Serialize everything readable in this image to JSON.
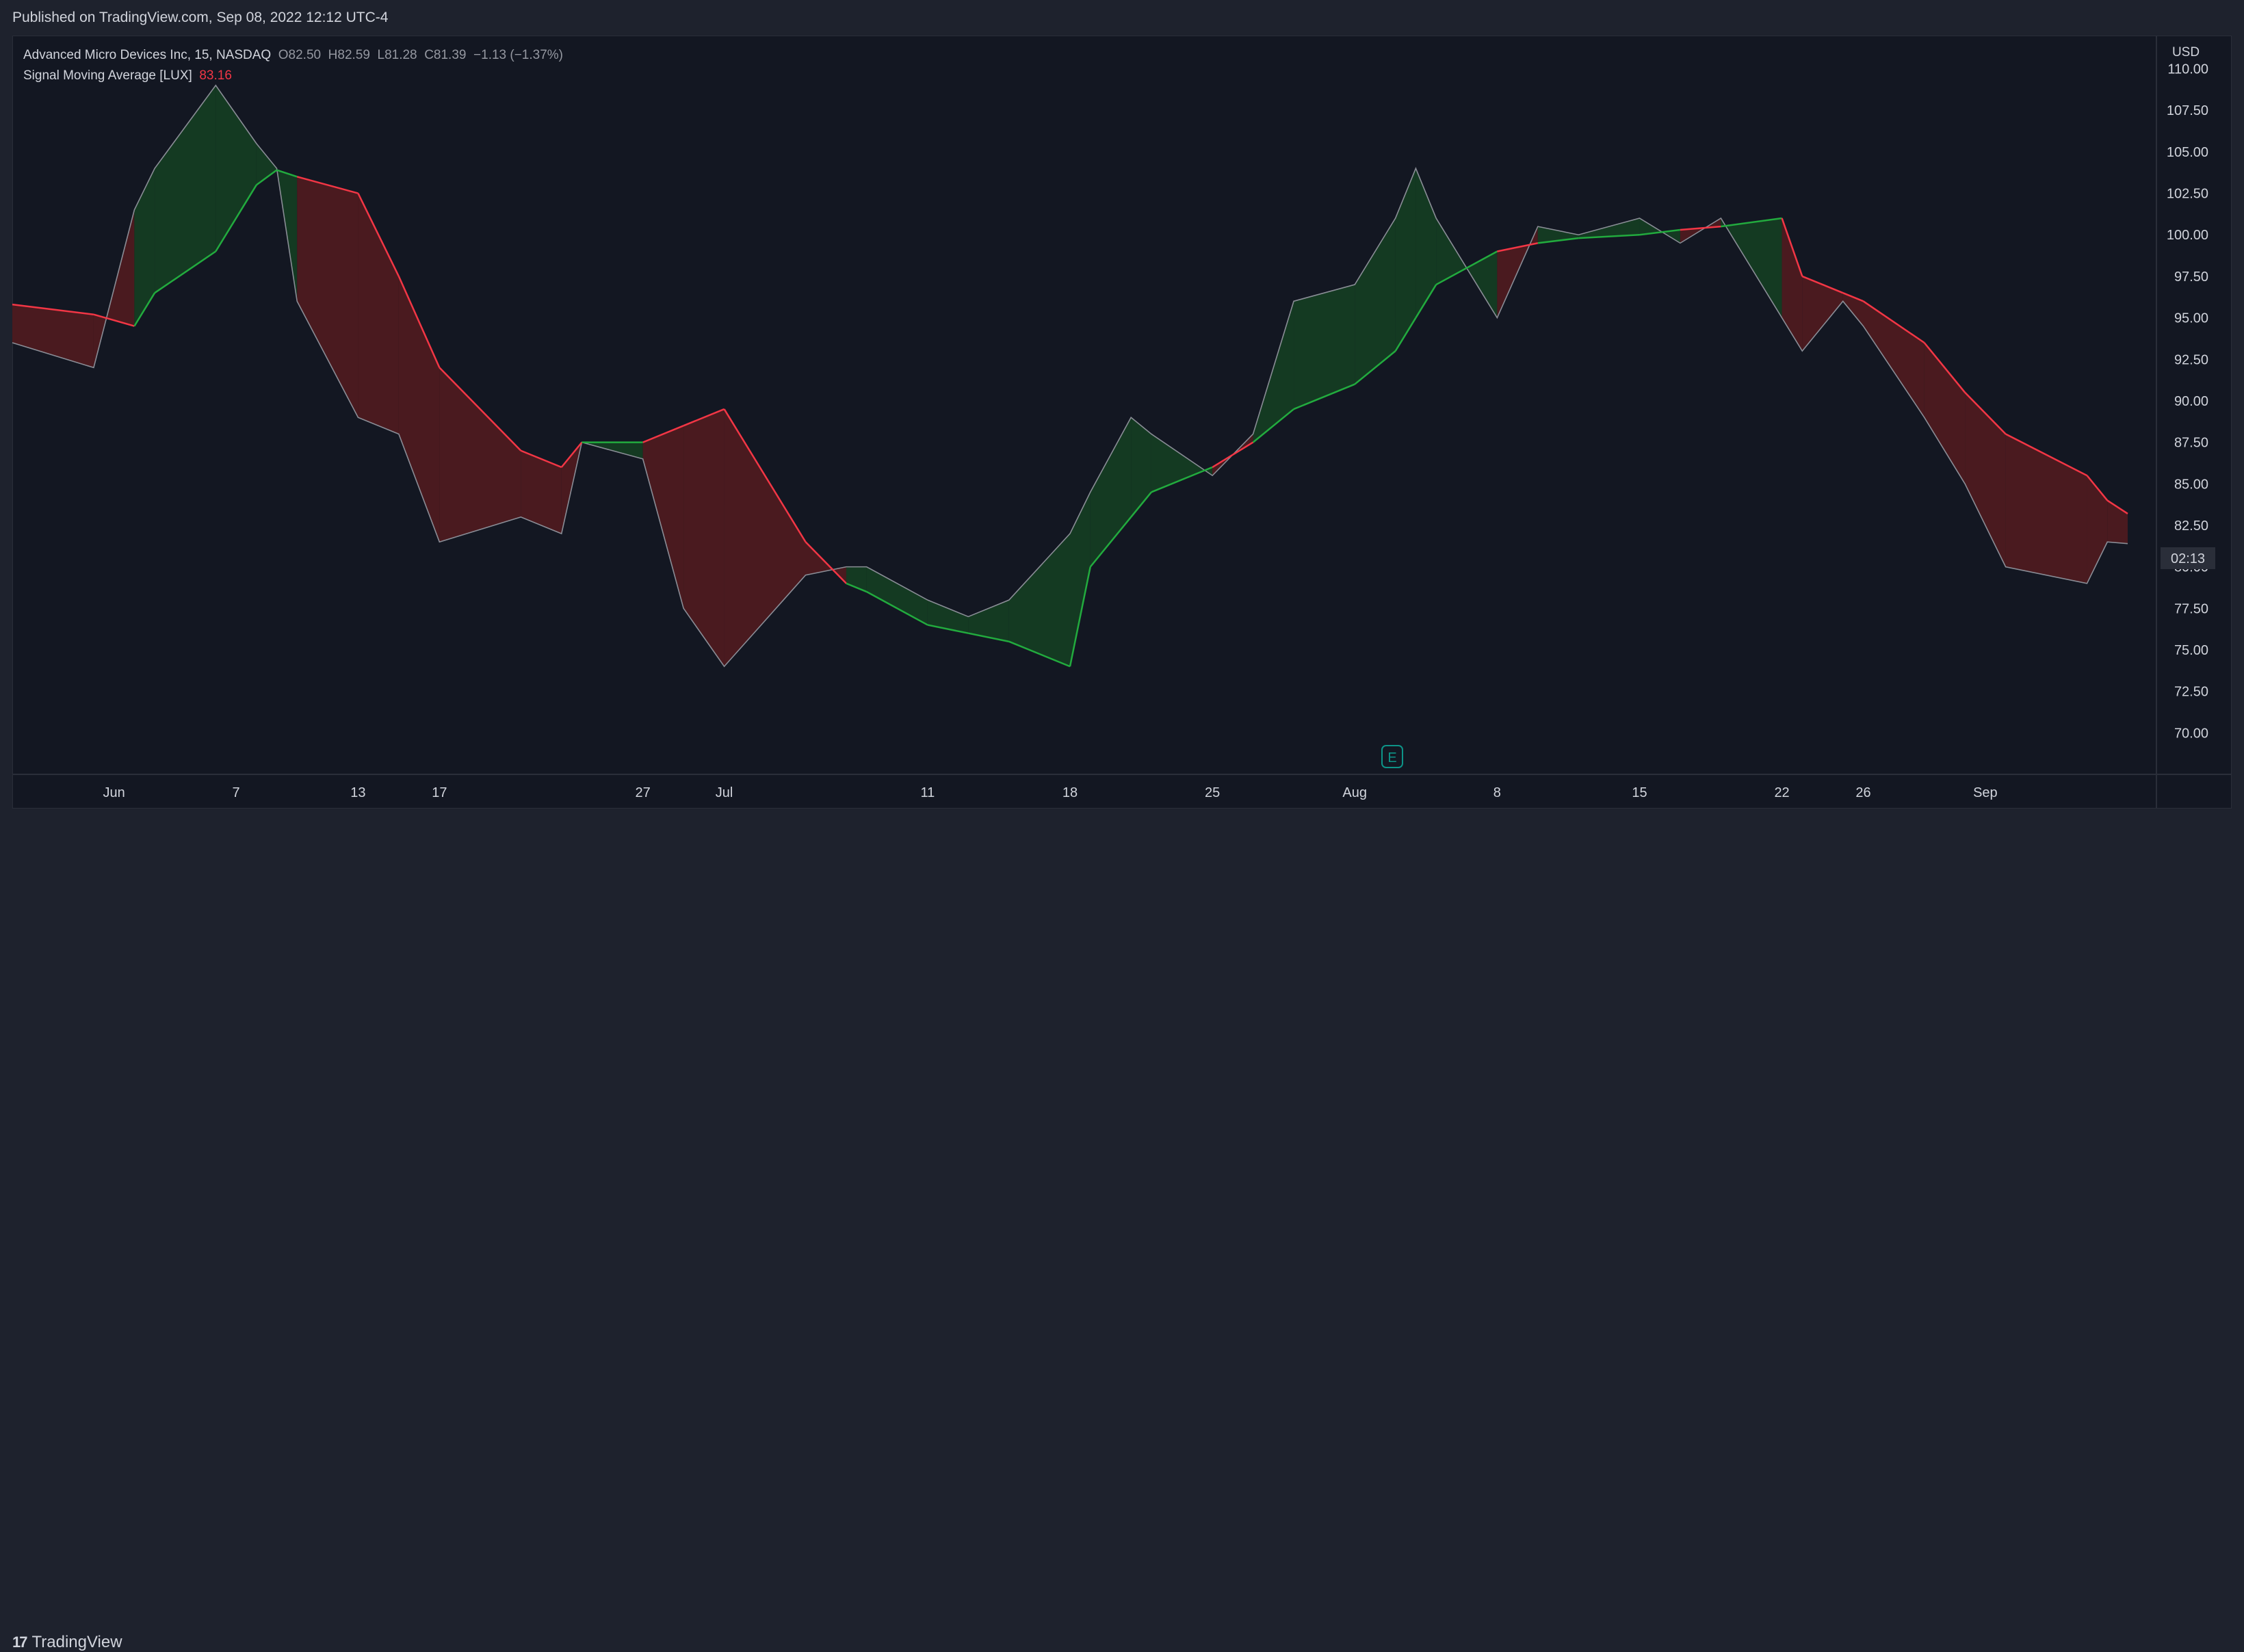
{
  "header": {
    "published": "Published on TradingView.com, Sep 08, 2022 12:12 UTC-4"
  },
  "legend": {
    "symbol": "Advanced Micro Devices Inc, 15, NASDAQ",
    "o_label": "O",
    "o_value": "82.50",
    "h_label": "H",
    "h_value": "82.59",
    "l_label": "L",
    "l_value": "81.28",
    "c_label": "C",
    "c_value": "81.39",
    "change": "−1.13 (−1.37%)",
    "indicator_name": "Signal Moving Average [LUX]",
    "indicator_value": "83.16"
  },
  "price_axis": {
    "currency": "USD",
    "countdown": "02:13"
  },
  "footer": {
    "brand": "TradingView",
    "logo_icon": "tradingview-logo-icon"
  },
  "earnings_marker": {
    "label": "E"
  },
  "colors": {
    "background": "#131722",
    "price_line": "#8a8d96",
    "sma_bull": "#22ab3e",
    "sma_bear": "#f23645",
    "fill_bull": "#143a22",
    "fill_bear": "#4a1a1f",
    "text": "#d1d4dc"
  },
  "chart_data": {
    "type": "line",
    "title": "Advanced Micro Devices Inc, 15, NASDAQ",
    "x_tick_labels": [
      "Jun",
      "7",
      "13",
      "17",
      "27",
      "Jul",
      "11",
      "18",
      "25",
      "Aug",
      "8",
      "15",
      "22",
      "26",
      "Sep"
    ],
    "y_ticks": [
      70.0,
      72.5,
      75.0,
      77.5,
      80.0,
      82.5,
      85.0,
      87.5,
      90.0,
      92.5,
      95.0,
      97.5,
      100.0,
      102.5,
      105.0,
      107.5,
      110.0
    ],
    "ylim": [
      67.5,
      112.0
    ],
    "x_date_range": [
      "2022-05-27",
      "2022-09-08"
    ],
    "series": [
      {
        "name": "AMD",
        "x": [
          "2022-05-27",
          "2022-05-31",
          "2022-06-02",
          "2022-06-03",
          "2022-06-06",
          "2022-06-08",
          "2022-06-09",
          "2022-06-10",
          "2022-06-13",
          "2022-06-15",
          "2022-06-17",
          "2022-06-21",
          "2022-06-23",
          "2022-06-24",
          "2022-06-27",
          "2022-06-29",
          "2022-07-01",
          "2022-07-05",
          "2022-07-07",
          "2022-07-08",
          "2022-07-11",
          "2022-07-13",
          "2022-07-15",
          "2022-07-18",
          "2022-07-19",
          "2022-07-21",
          "2022-07-22",
          "2022-07-25",
          "2022-07-27",
          "2022-07-29",
          "2022-08-01",
          "2022-08-03",
          "2022-08-04",
          "2022-08-05",
          "2022-08-08",
          "2022-08-10",
          "2022-08-12",
          "2022-08-15",
          "2022-08-17",
          "2022-08-19",
          "2022-08-22",
          "2022-08-23",
          "2022-08-25",
          "2022-08-26",
          "2022-08-29",
          "2022-08-31",
          "2022-09-02",
          "2022-09-06",
          "2022-09-07",
          "2022-09-08"
        ],
        "values": [
          93.5,
          92.0,
          101.5,
          104.0,
          109.0,
          105.5,
          104.0,
          96.0,
          89.0,
          88.0,
          81.5,
          83.0,
          82.0,
          87.5,
          86.5,
          77.5,
          74.0,
          79.5,
          80.0,
          80.0,
          78.0,
          77.0,
          78.0,
          82.0,
          84.5,
          89.0,
          88.0,
          85.5,
          88.0,
          96.0,
          97.0,
          101.0,
          104.0,
          101.0,
          95.0,
          100.5,
          100.0,
          101.0,
          99.5,
          101.0,
          95.0,
          93.0,
          96.0,
          94.5,
          89.0,
          85.0,
          80.0,
          79.0,
          81.5,
          81.4
        ]
      },
      {
        "name": "Signal Moving Average [LUX]",
        "x": [
          "2022-05-27",
          "2022-05-31",
          "2022-06-02",
          "2022-06-03",
          "2022-06-06",
          "2022-06-08",
          "2022-06-09",
          "2022-06-10",
          "2022-06-13",
          "2022-06-15",
          "2022-06-17",
          "2022-06-21",
          "2022-06-23",
          "2022-06-24",
          "2022-06-27",
          "2022-06-29",
          "2022-07-01",
          "2022-07-05",
          "2022-07-07",
          "2022-07-08",
          "2022-07-11",
          "2022-07-13",
          "2022-07-15",
          "2022-07-18",
          "2022-07-19",
          "2022-07-21",
          "2022-07-22",
          "2022-07-25",
          "2022-07-27",
          "2022-07-29",
          "2022-08-01",
          "2022-08-03",
          "2022-08-04",
          "2022-08-05",
          "2022-08-08",
          "2022-08-10",
          "2022-08-12",
          "2022-08-15",
          "2022-08-17",
          "2022-08-19",
          "2022-08-22",
          "2022-08-23",
          "2022-08-25",
          "2022-08-26",
          "2022-08-29",
          "2022-08-31",
          "2022-09-02",
          "2022-09-06",
          "2022-09-07",
          "2022-09-08"
        ],
        "values": [
          95.8,
          95.2,
          94.5,
          96.5,
          99.0,
          103.0,
          103.9,
          103.5,
          102.5,
          97.5,
          92.0,
          87.0,
          86.0,
          87.5,
          87.5,
          88.5,
          89.5,
          81.5,
          79.0,
          78.5,
          76.5,
          76.0,
          75.5,
          74.0,
          80.0,
          83.0,
          84.5,
          86.0,
          87.5,
          89.5,
          91.0,
          93.0,
          95.0,
          97.0,
          99.0,
          99.5,
          99.8,
          100.0,
          100.3,
          100.5,
          101.0,
          97.5,
          96.5,
          96.0,
          93.5,
          90.5,
          88.0,
          85.5,
          84.0,
          83.2
        ]
      }
    ]
  }
}
